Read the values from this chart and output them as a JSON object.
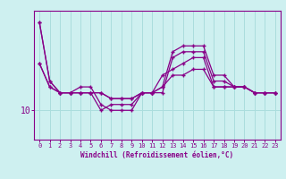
{
  "xlabel": "Windchill (Refroidissement éolien,°C)",
  "background_color": "#cef0f0",
  "grid_color": "#aadddd",
  "line_color": "#880088",
  "x_ticks": [
    0,
    1,
    2,
    3,
    4,
    5,
    6,
    7,
    8,
    9,
    10,
    11,
    12,
    13,
    14,
    15,
    16,
    17,
    18,
    19,
    20,
    21,
    22,
    23
  ],
  "y_tick_value": 10,
  "series": [
    [
      25,
      15,
      13,
      13,
      13,
      13,
      10,
      11,
      11,
      11,
      13,
      13,
      14,
      20,
      21,
      21,
      21,
      16,
      16,
      14,
      14,
      13,
      13,
      13
    ],
    [
      25,
      15,
      13,
      13,
      14,
      14,
      11,
      10,
      10,
      10,
      13,
      13,
      13,
      19,
      20,
      20,
      20,
      15,
      15,
      14,
      14,
      13,
      13,
      13
    ],
    [
      18,
      14,
      13,
      13,
      13,
      13,
      13,
      12,
      12,
      12,
      13,
      13,
      16,
      17,
      18,
      19,
      19,
      14,
      14,
      14,
      14,
      13,
      13,
      13
    ],
    [
      18,
      14,
      13,
      13,
      13,
      13,
      13,
      12,
      12,
      12,
      13,
      13,
      14,
      16,
      16,
      17,
      17,
      14,
      14,
      14,
      14,
      13,
      13,
      13
    ]
  ],
  "ylim_bottom": 5,
  "ylim_top": 27,
  "xlim_left": -0.5,
  "xlim_right": 23.5
}
